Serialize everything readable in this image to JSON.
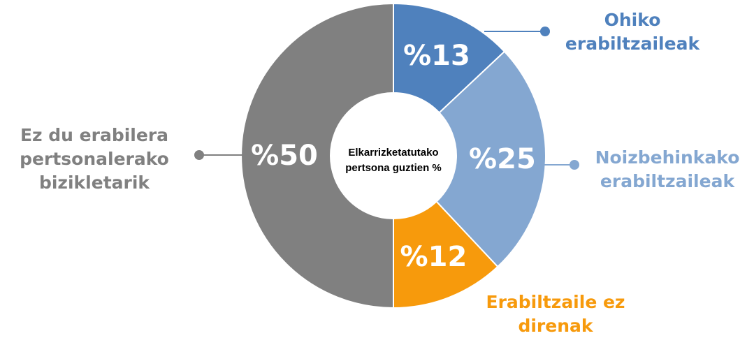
{
  "chart_data": {
    "type": "donut",
    "center_label": "Elkarrizketatutako pertsona guztien %",
    "categories": [
      "Ohiko erabiltzaileak",
      "Noizbehinkako erabiltzaileak",
      "Erabiltzaile ez direnak",
      "Ez du erabilera pertsonalerako bizikletarik"
    ],
    "values": [
      13,
      25,
      12,
      50
    ],
    "value_labels": [
      "%13",
      "%25",
      "%12",
      "%50"
    ],
    "colors": [
      "#4f81bd",
      "#84a7d1",
      "#f79a0c",
      "#808080"
    ]
  }
}
